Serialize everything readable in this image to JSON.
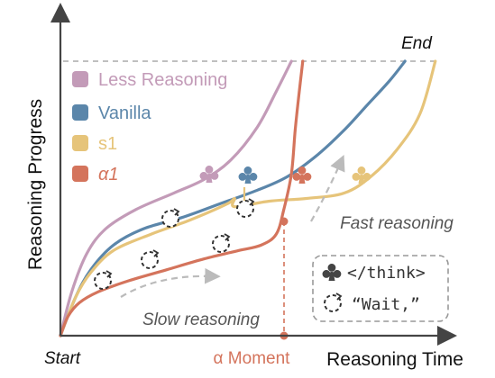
{
  "chart_data": {
    "type": "line",
    "xlabel": "Reasoning Time",
    "ylabel": "Reasoning Progress",
    "x_start_label": "Start",
    "end_label": "End",
    "alpha_moment_label": "α Moment",
    "legend_position": "top-left",
    "series": [
      {
        "name": "Less Reasoning",
        "color": "#c39bb8",
        "points": [
          [
            0,
            0
          ],
          [
            3,
            16
          ],
          [
            7,
            30
          ],
          [
            12,
            39
          ],
          [
            20,
            46
          ],
          [
            30,
            52
          ],
          [
            38,
            57
          ],
          [
            45,
            64
          ],
          [
            52,
            76
          ],
          [
            57,
            89
          ],
          [
            61,
            100
          ]
        ]
      },
      {
        "name": "Vanilla",
        "color": "#5b86aa",
        "points": [
          [
            0,
            0
          ],
          [
            4,
            14
          ],
          [
            8,
            24
          ],
          [
            14,
            33
          ],
          [
            22,
            39
          ],
          [
            32,
            43
          ],
          [
            42,
            48
          ],
          [
            52,
            53
          ],
          [
            60,
            58
          ],
          [
            68,
            66
          ],
          [
            75,
            75
          ],
          [
            81,
            84
          ],
          [
            87,
            93
          ],
          [
            91,
            100
          ]
        ]
      },
      {
        "name": "s1",
        "color": "#e6c47a",
        "points": [
          [
            0,
            0
          ],
          [
            4,
            14
          ],
          [
            8,
            23
          ],
          [
            14,
            31
          ],
          [
            24,
            37
          ],
          [
            34,
            42
          ],
          [
            44,
            48
          ],
          [
            46,
            50
          ],
          [
            46,
            47
          ],
          [
            55,
            49
          ],
          [
            65,
            50
          ],
          [
            75,
            52
          ],
          [
            82,
            58
          ],
          [
            89,
            68
          ],
          [
            95,
            81
          ],
          [
            99,
            100
          ]
        ]
      },
      {
        "name": "α1",
        "color": "#d4745c",
        "points": [
          [
            0,
            0
          ],
          [
            2,
            7
          ],
          [
            5,
            12
          ],
          [
            10,
            16
          ],
          [
            18,
            20
          ],
          [
            28,
            24
          ],
          [
            38,
            28
          ],
          [
            47,
            31
          ],
          [
            53,
            33
          ],
          [
            57,
            37
          ],
          [
            59,
            46
          ],
          [
            61,
            59
          ],
          [
            62,
            75
          ],
          [
            63,
            88
          ],
          [
            64,
            100
          ]
        ]
      }
    ],
    "annotations": [
      {
        "text": "Slow reasoning",
        "direction": "arrow pointing right along the lower α1 curve"
      },
      {
        "text": "Fast reasoning",
        "direction": "arrow pointing up toward the s1 / α1 rise"
      }
    ],
    "markers": {
      "think_end_symbol": "club",
      "wait_symbol": "dashed-circle-arrows",
      "club_series": [
        "Less Reasoning",
        "Vanilla",
        "α1",
        "s1"
      ],
      "wait_series": [
        "Vanilla",
        "s1",
        "α1"
      ]
    },
    "alpha_moment_x": 55,
    "end_y": 100
  },
  "box": {
    "think_label": "</think>",
    "wait_label": "“Wait,”"
  },
  "colors": {
    "less": "#c39bb8",
    "vanilla": "#5b86aa",
    "s1": "#e6c47a",
    "alpha": "#d4745c",
    "axis": "#444444",
    "dashed": "#aaaaaa",
    "text_grey": "#555555"
  }
}
